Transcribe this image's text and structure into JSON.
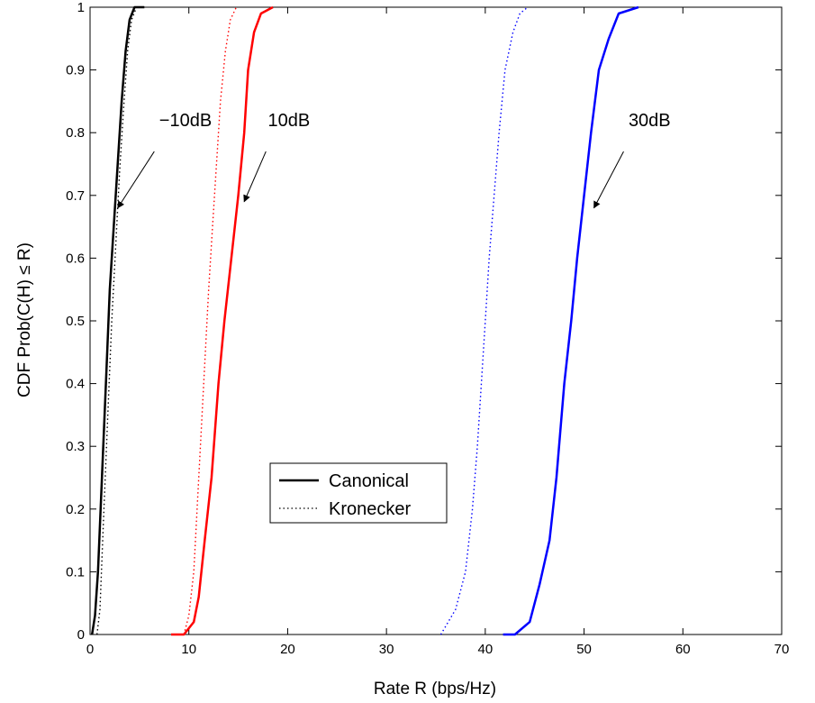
{
  "chart_data": {
    "type": "line",
    "xlabel": "Rate R (bps/Hz)",
    "ylabel": "CDF Prob(C(H) ≤ R)",
    "xlim": [
      0,
      70
    ],
    "ylim": [
      0,
      1
    ],
    "xticks": [
      "0",
      "10",
      "20",
      "30",
      "40",
      "50",
      "60",
      "70"
    ],
    "yticks": [
      "0",
      "0.1",
      "0.2",
      "0.3",
      "0.4",
      "0.5",
      "0.6",
      "0.7",
      "0.8",
      "0.9",
      "1"
    ],
    "grid": false,
    "legend": {
      "position": "lower-center",
      "entries": [
        {
          "label": "Canonical",
          "style": "solid"
        },
        {
          "label": "Kronecker",
          "style": "dotted"
        }
      ]
    },
    "series": [
      {
        "snr": "-10dB",
        "model": "Canonical",
        "style": "solid",
        "color": "#000000",
        "points": [
          [
            0.2,
            0
          ],
          [
            0.5,
            0.03
          ],
          [
            0.8,
            0.1
          ],
          [
            1.2,
            0.25
          ],
          [
            1.6,
            0.4
          ],
          [
            2.0,
            0.55
          ],
          [
            2.4,
            0.65
          ],
          [
            2.8,
            0.75
          ],
          [
            3.2,
            0.85
          ],
          [
            3.6,
            0.93
          ],
          [
            4.0,
            0.98
          ],
          [
            4.5,
            1.0
          ],
          [
            5.5,
            1.0
          ]
        ]
      },
      {
        "snr": "-10dB",
        "model": "Kronecker",
        "style": "dotted",
        "color": "#000000",
        "points": [
          [
            0.7,
            0
          ],
          [
            1.0,
            0.04
          ],
          [
            1.4,
            0.2
          ],
          [
            1.8,
            0.35
          ],
          [
            2.2,
            0.5
          ],
          [
            2.6,
            0.62
          ],
          [
            3.0,
            0.74
          ],
          [
            3.4,
            0.84
          ],
          [
            3.8,
            0.93
          ],
          [
            4.2,
            0.98
          ],
          [
            4.7,
            1.0
          ]
        ]
      },
      {
        "snr": "10dB",
        "model": "Canonical",
        "style": "solid",
        "color": "#ff0000",
        "points": [
          [
            8.2,
            0
          ],
          [
            9.5,
            0
          ],
          [
            10.5,
            0.02
          ],
          [
            11.0,
            0.06
          ],
          [
            11.6,
            0.15
          ],
          [
            12.3,
            0.25
          ],
          [
            13.0,
            0.4
          ],
          [
            13.6,
            0.5
          ],
          [
            14.3,
            0.6
          ],
          [
            15.0,
            0.7
          ],
          [
            15.6,
            0.8
          ],
          [
            16.0,
            0.9
          ],
          [
            16.6,
            0.96
          ],
          [
            17.3,
            0.99
          ],
          [
            18.5,
            1.0
          ]
        ]
      },
      {
        "snr": "10dB",
        "model": "Kronecker",
        "style": "dotted",
        "color": "#ff0000",
        "points": [
          [
            9.5,
            0
          ],
          [
            10.0,
            0.03
          ],
          [
            10.5,
            0.1
          ],
          [
            11.0,
            0.25
          ],
          [
            11.5,
            0.4
          ],
          [
            12.0,
            0.55
          ],
          [
            12.4,
            0.65
          ],
          [
            12.8,
            0.75
          ],
          [
            13.2,
            0.85
          ],
          [
            13.7,
            0.93
          ],
          [
            14.2,
            0.98
          ],
          [
            14.8,
            1.0
          ]
        ]
      },
      {
        "snr": "30dB",
        "model": "Canonical",
        "style": "solid",
        "color": "#0000ff",
        "points": [
          [
            41.8,
            0
          ],
          [
            43.0,
            0.0
          ],
          [
            44.5,
            0.02
          ],
          [
            45.5,
            0.08
          ],
          [
            46.5,
            0.15
          ],
          [
            47.2,
            0.25
          ],
          [
            48.0,
            0.4
          ],
          [
            48.7,
            0.5
          ],
          [
            49.3,
            0.6
          ],
          [
            50.0,
            0.7
          ],
          [
            50.7,
            0.8
          ],
          [
            51.5,
            0.9
          ],
          [
            52.5,
            0.95
          ],
          [
            53.5,
            0.99
          ],
          [
            55.5,
            1.0
          ]
        ]
      },
      {
        "snr": "30dB",
        "model": "Kronecker",
        "style": "dotted",
        "color": "#0000ff",
        "points": [
          [
            35.5,
            0
          ],
          [
            37.0,
            0.04
          ],
          [
            38.0,
            0.1
          ],
          [
            38.7,
            0.2
          ],
          [
            39.2,
            0.3
          ],
          [
            39.6,
            0.4
          ],
          [
            40.0,
            0.5
          ],
          [
            40.4,
            0.6
          ],
          [
            40.9,
            0.7
          ],
          [
            41.4,
            0.8
          ],
          [
            42.0,
            0.9
          ],
          [
            42.8,
            0.96
          ],
          [
            43.5,
            0.99
          ],
          [
            44.3,
            1.0
          ]
        ]
      }
    ],
    "annotations": [
      {
        "text": "−10dB",
        "arrow_from": [
          6.5,
          0.77
        ],
        "arrow_to": [
          2.8,
          0.68
        ],
        "text_at": [
          7.0,
          0.81
        ]
      },
      {
        "text": "10dB",
        "arrow_from": [
          17.8,
          0.77
        ],
        "arrow_to": [
          15.6,
          0.69
        ],
        "text_at": [
          18.0,
          0.81
        ]
      },
      {
        "text": "30dB",
        "arrow_from": [
          54.0,
          0.77
        ],
        "arrow_to": [
          51.0,
          0.68
        ],
        "text_at": [
          54.5,
          0.81
        ]
      }
    ]
  }
}
